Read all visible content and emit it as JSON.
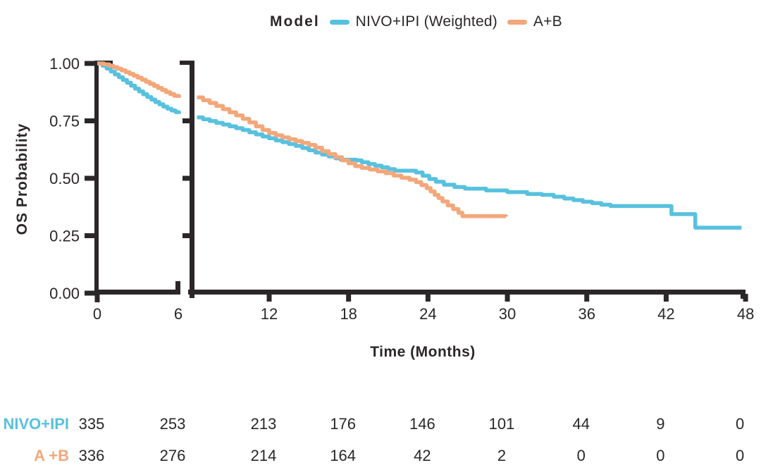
{
  "legend": {
    "title": "Model",
    "series": [
      {
        "label": "NIVO+IPI (Weighted)",
        "color": "#58C1DF"
      },
      {
        "label": "A+B",
        "color": "#F3A77A"
      }
    ]
  },
  "chart_data": {
    "type": "line",
    "subtype": "kaplan-meier-step",
    "title": "",
    "xlabel": "Time (Months)",
    "ylabel": "OS Probability",
    "xlim": [
      0,
      48
    ],
    "ylim": [
      0.0,
      1.0
    ],
    "grid": false,
    "legend_position": "top-center",
    "axis_break_between_months": [
      6,
      7
    ],
    "x_ticks": [
      0,
      6,
      12,
      18,
      24,
      30,
      36,
      42,
      48
    ],
    "y_ticks": [
      {
        "label": "1.00",
        "value": 1.0
      },
      {
        "label": "0.75",
        "value": 0.75
      },
      {
        "label": "0.50",
        "value": 0.5
      },
      {
        "label": "0.25",
        "value": 0.25
      },
      {
        "label": "0.00",
        "value": 0.0
      }
    ],
    "series": [
      {
        "name": "NIVO+IPI (Weighted)",
        "color": "#58C1DF",
        "segment1": [
          [
            0,
            1
          ],
          [
            0.4,
            0.99
          ],
          [
            0.7,
            0.978
          ],
          [
            1.0,
            0.965
          ],
          [
            1.3,
            0.952
          ],
          [
            1.6,
            0.94
          ],
          [
            1.9,
            0.928
          ],
          [
            2.2,
            0.916
          ],
          [
            2.5,
            0.903
          ],
          [
            2.8,
            0.89
          ],
          [
            3.1,
            0.878
          ],
          [
            3.4,
            0.866
          ],
          [
            3.7,
            0.854
          ],
          [
            4.0,
            0.843
          ],
          [
            4.3,
            0.832
          ],
          [
            4.6,
            0.822
          ],
          [
            4.9,
            0.812
          ],
          [
            5.2,
            0.803
          ],
          [
            5.5,
            0.795
          ],
          [
            5.8,
            0.788
          ],
          [
            6.05,
            0.78
          ]
        ],
        "segment2": [
          [
            6.55,
            0.765
          ],
          [
            7,
            0.757
          ],
          [
            7.5,
            0.749
          ],
          [
            8,
            0.741
          ],
          [
            8.5,
            0.734
          ],
          [
            9,
            0.726
          ],
          [
            9.5,
            0.718
          ],
          [
            10,
            0.71
          ],
          [
            10.5,
            0.7
          ],
          [
            11,
            0.691
          ],
          [
            11.5,
            0.682
          ],
          [
            12,
            0.674
          ],
          [
            12.5,
            0.665
          ],
          [
            13,
            0.657
          ],
          [
            13.5,
            0.649
          ],
          [
            14,
            0.641
          ],
          [
            14.5,
            0.632
          ],
          [
            15,
            0.622
          ],
          [
            15.5,
            0.612
          ],
          [
            16,
            0.603
          ],
          [
            16.5,
            0.595
          ],
          [
            17,
            0.587
          ],
          [
            17.4,
            0.581
          ],
          [
            18.6,
            0.578
          ],
          [
            19,
            0.57
          ],
          [
            19.5,
            0.562
          ],
          [
            20,
            0.555
          ],
          [
            20.5,
            0.548
          ],
          [
            21,
            0.54
          ],
          [
            21.5,
            0.533
          ],
          [
            23.1,
            0.525
          ],
          [
            23.6,
            0.511
          ],
          [
            24.1,
            0.497
          ],
          [
            24.6,
            0.485
          ],
          [
            25.2,
            0.472
          ],
          [
            26,
            0.462
          ],
          [
            26.8,
            0.455
          ],
          [
            28.4,
            0.447
          ],
          [
            30,
            0.44
          ],
          [
            31.5,
            0.432
          ],
          [
            32.6,
            0.428
          ],
          [
            33.5,
            0.42
          ],
          [
            34.3,
            0.412
          ],
          [
            35,
            0.405
          ],
          [
            35.7,
            0.398
          ],
          [
            36.4,
            0.392
          ],
          [
            37.1,
            0.385
          ],
          [
            37.8,
            0.379
          ],
          [
            42.4,
            0.344
          ],
          [
            44.2,
            0.285
          ],
          [
            47.7,
            0.285
          ]
        ]
      },
      {
        "name": "A+B",
        "color": "#F3A77A",
        "segment1": [
          [
            0,
            1
          ],
          [
            0.5,
            0.996
          ],
          [
            0.9,
            0.99
          ],
          [
            1.2,
            0.984
          ],
          [
            1.5,
            0.977
          ],
          [
            1.8,
            0.97
          ],
          [
            2.1,
            0.962
          ],
          [
            2.4,
            0.954
          ],
          [
            2.7,
            0.946
          ],
          [
            3.0,
            0.938
          ],
          [
            3.3,
            0.929
          ],
          [
            3.6,
            0.92
          ],
          [
            3.9,
            0.911
          ],
          [
            4.2,
            0.902
          ],
          [
            4.5,
            0.893
          ],
          [
            4.8,
            0.884
          ],
          [
            5.1,
            0.875
          ],
          [
            5.4,
            0.867
          ],
          [
            5.7,
            0.859
          ],
          [
            6.05,
            0.85
          ]
        ],
        "segment2": [
          [
            6.55,
            0.852
          ],
          [
            7,
            0.84
          ],
          [
            7.5,
            0.828
          ],
          [
            8,
            0.815
          ],
          [
            8.5,
            0.801
          ],
          [
            9,
            0.787
          ],
          [
            9.5,
            0.774
          ],
          [
            10,
            0.759
          ],
          [
            10.5,
            0.743
          ],
          [
            11,
            0.726
          ],
          [
            11.5,
            0.71
          ],
          [
            12,
            0.697
          ],
          [
            12.5,
            0.687
          ],
          [
            13,
            0.678
          ],
          [
            13.5,
            0.67
          ],
          [
            14,
            0.662
          ],
          [
            14.5,
            0.654
          ],
          [
            15,
            0.645
          ],
          [
            15.5,
            0.633
          ],
          [
            16,
            0.618
          ],
          [
            16.5,
            0.605
          ],
          [
            17,
            0.592
          ],
          [
            17.5,
            0.578
          ],
          [
            18,
            0.565
          ],
          [
            18.5,
            0.553
          ],
          [
            19,
            0.545
          ],
          [
            19.6,
            0.538
          ],
          [
            20.2,
            0.53
          ],
          [
            20.8,
            0.522
          ],
          [
            21.4,
            0.512
          ],
          [
            22,
            0.502
          ],
          [
            22.6,
            0.494
          ],
          [
            23.1,
            0.483
          ],
          [
            23.5,
            0.47
          ],
          [
            23.9,
            0.457
          ],
          [
            24.2,
            0.443
          ],
          [
            24.5,
            0.428
          ],
          [
            24.8,
            0.414
          ],
          [
            25.1,
            0.399
          ],
          [
            25.5,
            0.382
          ],
          [
            25.9,
            0.366
          ],
          [
            26.3,
            0.35
          ],
          [
            26.6,
            0.335
          ],
          [
            29.9,
            0.333
          ]
        ]
      }
    ]
  },
  "risk_table": {
    "times": [
      0,
      6,
      12,
      18,
      24,
      30,
      36,
      42,
      48
    ],
    "rows": [
      {
        "label": "NIVO+IPI",
        "color": "#58C1DF",
        "values": [
          "335",
          "253",
          "213",
          "176",
          "146",
          "101",
          "44",
          "9",
          "0"
        ]
      },
      {
        "label": "A +B",
        "color": "#F3A77A",
        "values": [
          "336",
          "276",
          "214",
          "164",
          "42",
          "2",
          "0",
          "0",
          "0"
        ]
      }
    ]
  },
  "colors": {
    "axis": "#2b2728",
    "text": "#2b2728"
  }
}
